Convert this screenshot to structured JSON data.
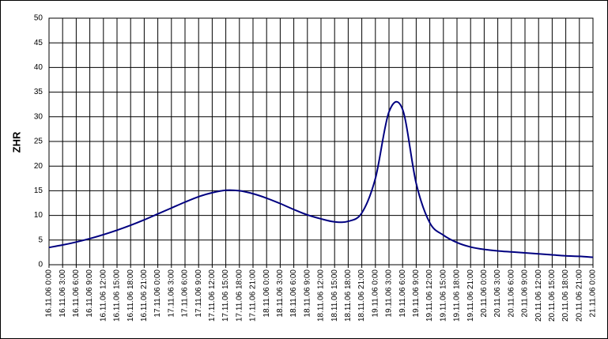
{
  "chart_data": {
    "type": "line",
    "y_label": "ZHR",
    "categories": [
      "16.11.06 0:00",
      "16.11.06 3:00",
      "16.11.06 6:00",
      "16.11.06 9:00",
      "16.11.06 12:00",
      "16.11.06 15:00",
      "16.11.06 18:00",
      "16.11.06 21:00",
      "17.11.06 0:00",
      "17.11.06 3:00",
      "17.11.06 6:00",
      "17.11.06 9:00",
      "17.11.06 12:00",
      "17.11.06 15:00",
      "17.11.06 18:00",
      "17.11.06 21:00",
      "18.11.06 0:00",
      "18.11.06 3:00",
      "18.11.06 6:00",
      "18.11.06 9:00",
      "18.11.06 12:00",
      "18.11.06 15:00",
      "18.11.06 18:00",
      "18.11.06 21:00",
      "19.11.06 0:00",
      "19.11.06 3:00",
      "19.11.06 6:00",
      "19.11.06 9:00",
      "19.11.06 12:00",
      "19.11.06 15:00",
      "19.11.06 18:00",
      "19.11.06 21:00",
      "20.11.06 0:00",
      "20.11.06 3:00",
      "20.11.06 6:00",
      "20.11.06 9:00",
      "20.11.06 12:00",
      "20.11.06 15:00",
      "20.11.06 18:00",
      "20.11.06 21:00",
      "21.11.06 0:00"
    ],
    "series": [
      {
        "name": "ZHR",
        "color": "#000080",
        "values": [
          3.5,
          4.0,
          4.6,
          5.3,
          6.1,
          7.0,
          8.0,
          9.1,
          10.3,
          11.5,
          12.7,
          13.8,
          14.6,
          15.1,
          15.0,
          14.4,
          13.5,
          12.4,
          11.2,
          10.1,
          9.3,
          8.7,
          8.8,
          10.5,
          17.5,
          31,
          31.5,
          16.5,
          8.5,
          6.0,
          4.5,
          3.6,
          3.1,
          2.8,
          2.6,
          2.4,
          2.2,
          2.0,
          1.8,
          1.7,
          1.5
        ]
      }
    ],
    "ylim": [
      0,
      50
    ],
    "yticks": [
      0,
      5,
      10,
      15,
      20,
      25,
      30,
      35,
      40,
      45,
      50
    ],
    "grid": true
  }
}
